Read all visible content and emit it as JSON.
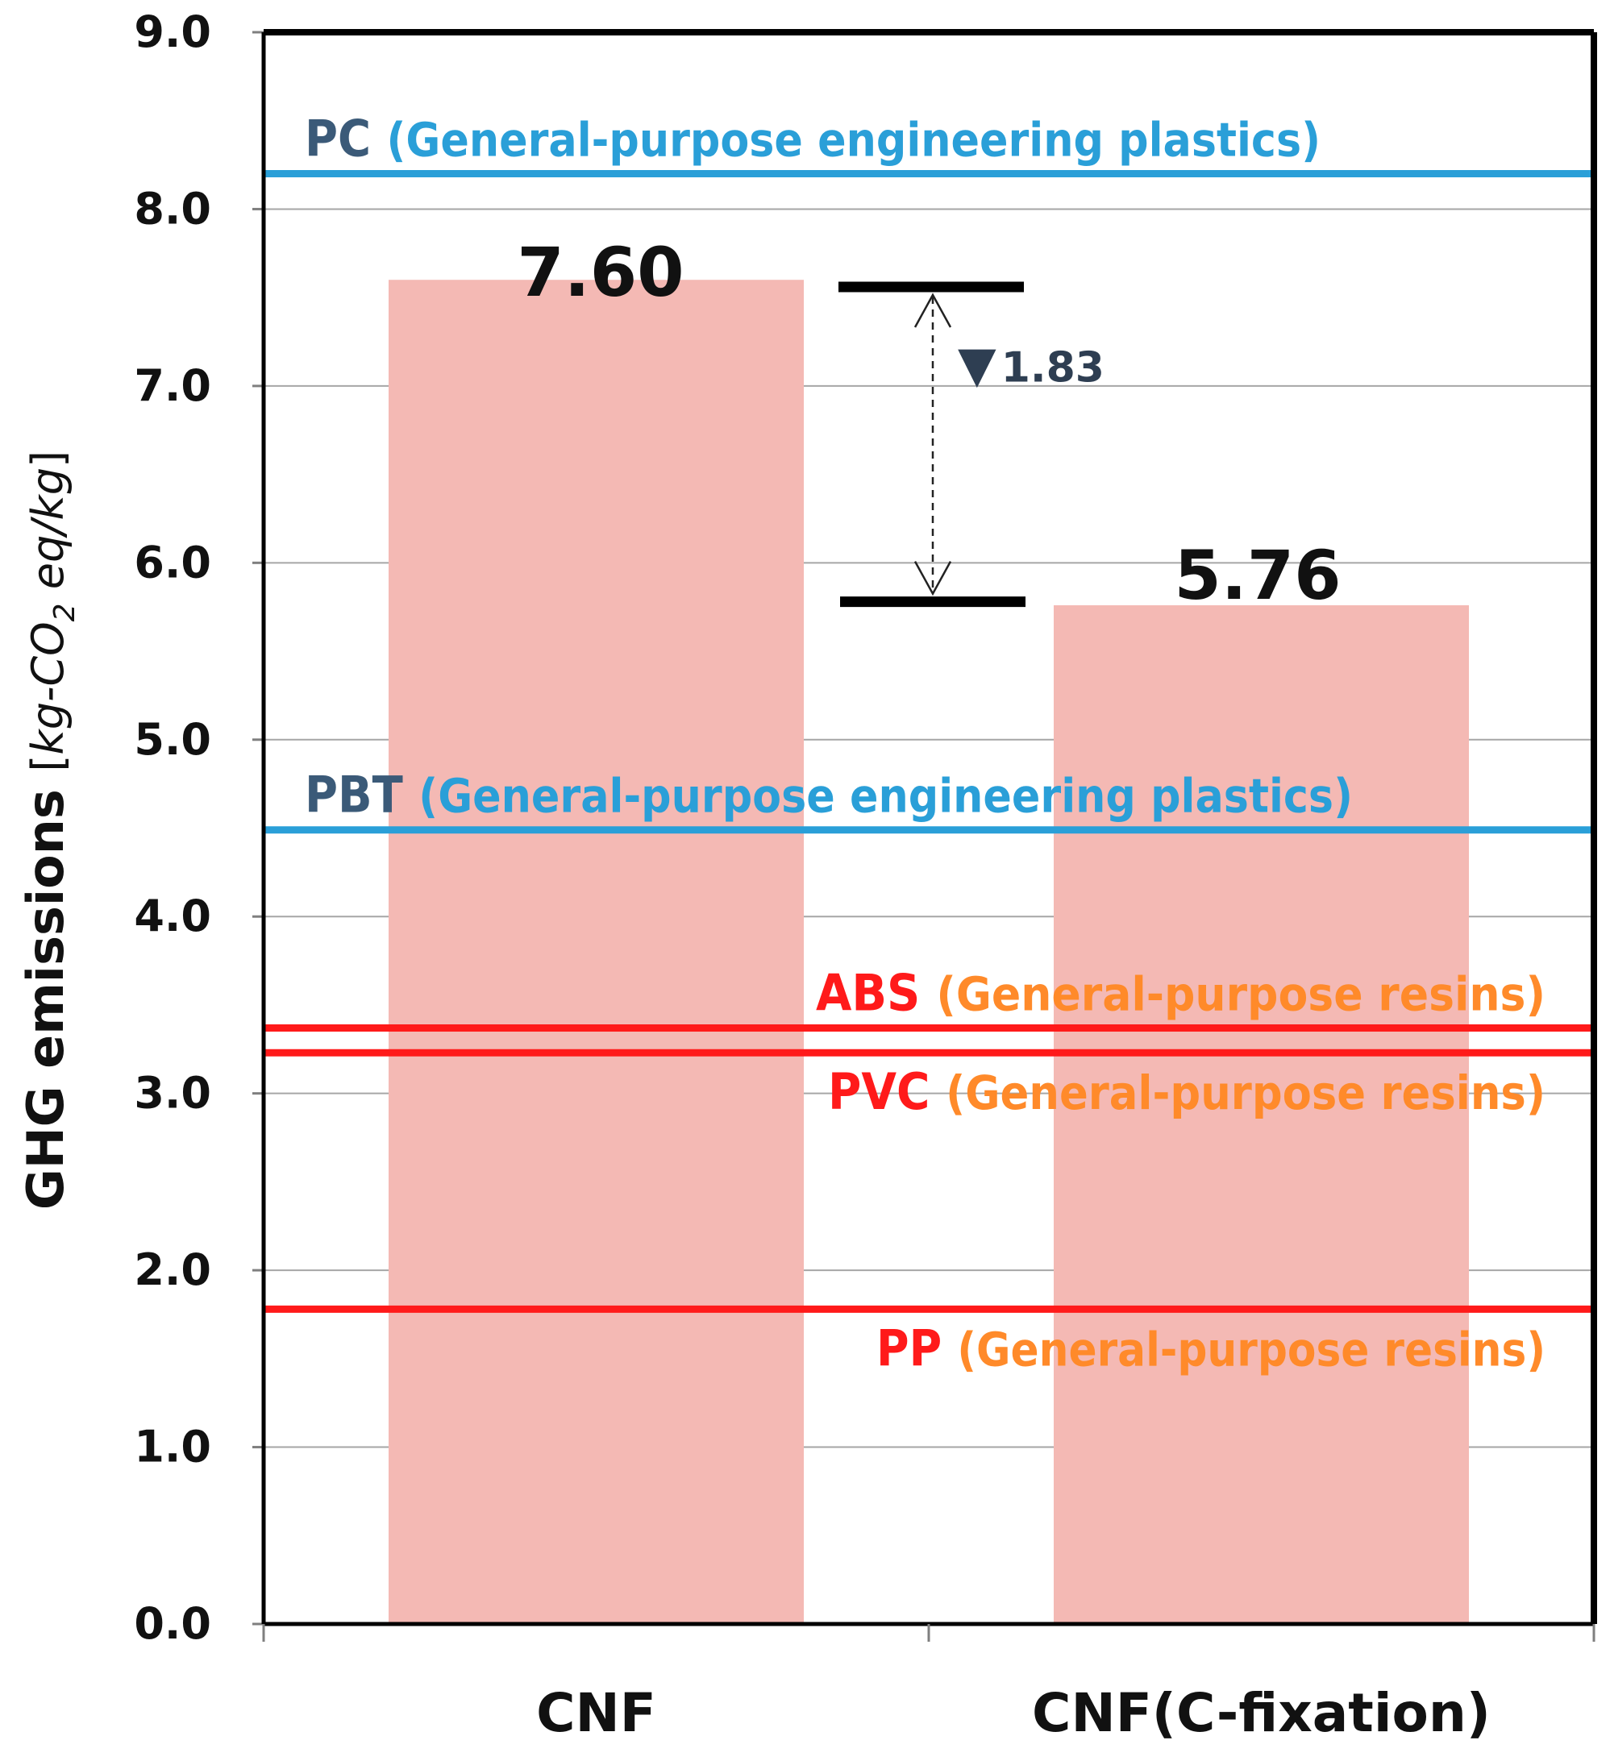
{
  "chart_data": {
    "type": "bar",
    "ylabel_main": "GHG emissions",
    "ylabel_unit_parts": [
      "[",
      "kg-CO",
      "2",
      " eq/kg",
      "]"
    ],
    "ylim": [
      0,
      9
    ],
    "ytick_values": [
      0,
      1,
      2,
      3,
      4,
      5,
      6,
      7,
      8,
      9
    ],
    "ytick_labels": [
      "0.0",
      "1.0",
      "2.0",
      "3.0",
      "4.0",
      "5.0",
      "6.0",
      "7.0",
      "8.0",
      "9.0"
    ],
    "grid": true,
    "categories": [
      "CNF",
      "CNF(C-fixation)"
    ],
    "values": [
      7.6,
      5.76
    ],
    "value_labels": [
      "7.60",
      "5.76"
    ],
    "bar_color": "#f4b9b4",
    "reference_lines": [
      {
        "name": "PC",
        "value": 8.2,
        "description": "(General-purpose engineering plastics)",
        "line_color": "#2a9fd8",
        "name_color": "#3b5a78",
        "desc_color": "#2a9fd8",
        "label_side": "above"
      },
      {
        "name": "PBT",
        "value": 4.49,
        "description": "(General-purpose engineering plastics)",
        "line_color": "#2a9fd8",
        "name_color": "#3b5a78",
        "desc_color": "#2a9fd8",
        "label_side": "above"
      },
      {
        "name": "ABS",
        "value": 3.37,
        "description": "(General-purpose resins)",
        "line_color": "#ff1a1a",
        "name_color": "#ff1a1a",
        "desc_color": "#ff8a2a",
        "label_side": "above"
      },
      {
        "name": "PVC",
        "value": 3.23,
        "description": "(General-purpose resins)",
        "line_color": "#ff1a1a",
        "name_color": "#ff1a1a",
        "desc_color": "#ff8a2a",
        "label_side": "below"
      },
      {
        "name": "PP",
        "value": 1.78,
        "description": "(General-purpose resins)",
        "line_color": "#ff1a1a",
        "name_color": "#ff1a1a",
        "desc_color": "#ff8a2a",
        "label_side": "below"
      }
    ],
    "annotation": {
      "from_value": 7.56,
      "to_value": 5.78,
      "text": "1.83",
      "symbol": "▼",
      "text_color": "#2e3e52"
    }
  }
}
